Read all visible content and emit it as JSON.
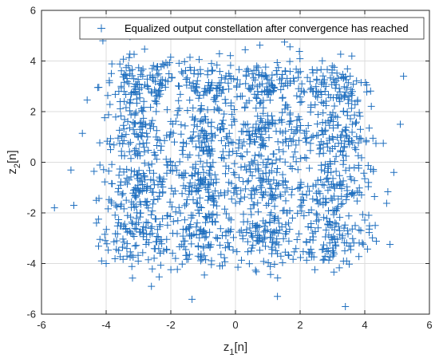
{
  "chart_data": {
    "type": "scatter",
    "marker": "plus",
    "marker_color": "#1f6fbf",
    "axis_color": "#262626",
    "grid_color": "#dcdcdc",
    "grid": true,
    "legend_position": "top-right",
    "xlim": [
      -6,
      6
    ],
    "ylim": [
      -6,
      6
    ],
    "x_ticks": [
      -6,
      -4,
      -2,
      0,
      2,
      4,
      6
    ],
    "y_ticks": [
      -6,
      -4,
      -2,
      0,
      2,
      4,
      6
    ],
    "x_tick_labels": [
      "-6",
      "-4",
      "-2",
      "0",
      "2",
      "4",
      "6"
    ],
    "y_tick_labels": [
      "-6",
      "-4",
      "-2",
      "0",
      "2",
      "4",
      "6"
    ],
    "xlabel": {
      "base": "z",
      "sub": "1",
      "suffix": "[n]"
    },
    "ylabel": {
      "base": "z",
      "sub": "2",
      "suffix": "[n]"
    },
    "series": [
      {
        "name": "Equalized output constellation after convergence has reached",
        "cluster_centers_x": [
          -3,
          -1,
          1,
          3
        ],
        "cluster_centers_y": [
          -3,
          -1,
          1,
          3
        ],
        "cluster_spread": 0.6,
        "points_per_cluster": 110,
        "outliers": [
          [
            -5.6,
            -1.8
          ],
          [
            -2.6,
            -4.9
          ],
          [
            1.3,
            -5.3
          ],
          [
            3.4,
            -5.7
          ],
          [
            5.2,
            3.4
          ],
          [
            4.9,
            -0.4
          ],
          [
            -5.0,
            -1.7
          ],
          [
            -4.1,
            4.8
          ],
          [
            -4.3,
            -2.4
          ],
          [
            -4.0,
            -4.0
          ],
          [
            5.1,
            1.5
          ],
          [
            3.6,
            4.2
          ]
        ]
      }
    ]
  }
}
